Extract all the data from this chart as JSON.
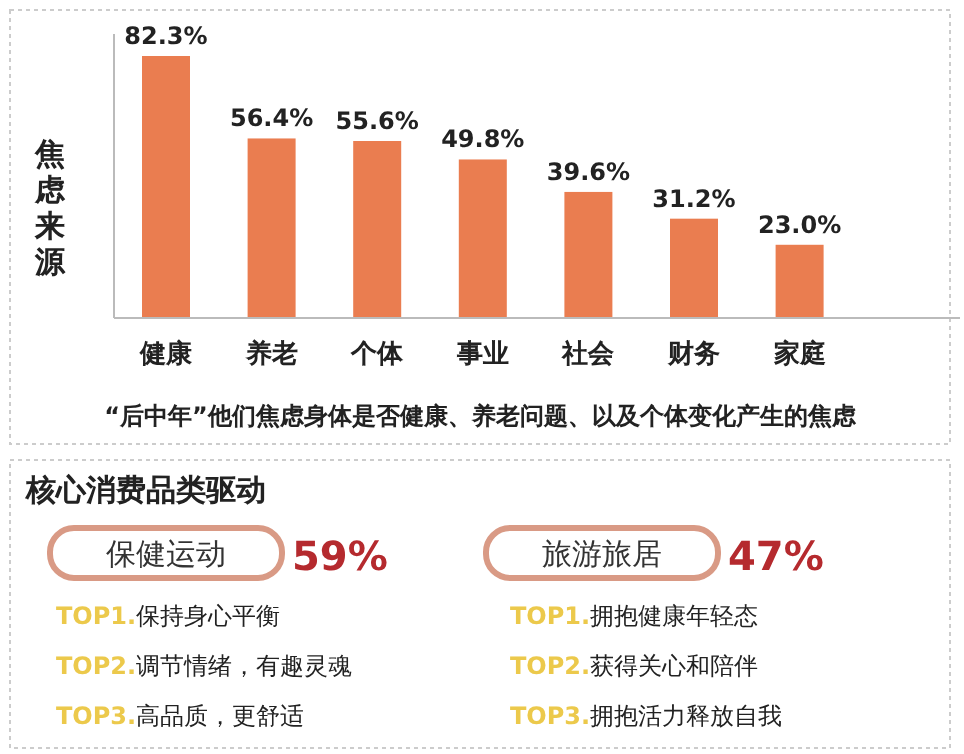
{
  "chart_data": [
    {
      "type": "bar",
      "ylabel": "焦虑来源",
      "categories": [
        "健康",
        "养老",
        "个体",
        "事业",
        "社会",
        "财务",
        "家庭"
      ],
      "values": [
        82.3,
        56.4,
        55.6,
        49.8,
        39.6,
        31.2,
        23.0
      ],
      "value_labels": [
        "82.3%",
        "56.4%",
        "55.6%",
        "49.8%",
        "39.6%",
        "31.2%",
        "23.0%"
      ],
      "color": "#ea7d50",
      "annotations": [
        "“后中年”他们焦虑身体是否健康、养老问题、以及个体变化产生的焦虑"
      ]
    },
    {
      "type": "other",
      "title": "核心消费品类驱动",
      "categories": [
        "保健运动",
        "旅游旅居"
      ],
      "value_labels": [
        "59%",
        "47%"
      ],
      "annotations": [
        "TOP1.保持身心平衡",
        "TOP2.调节情绪，有趣灵魂",
        "TOP3.高品质，更舒适",
        "TOP1.拥抱健康年轻态",
        "TOP2.获得关心和陪伴",
        "TOP3.拥抱活力释放自我"
      ]
    }
  ]
}
